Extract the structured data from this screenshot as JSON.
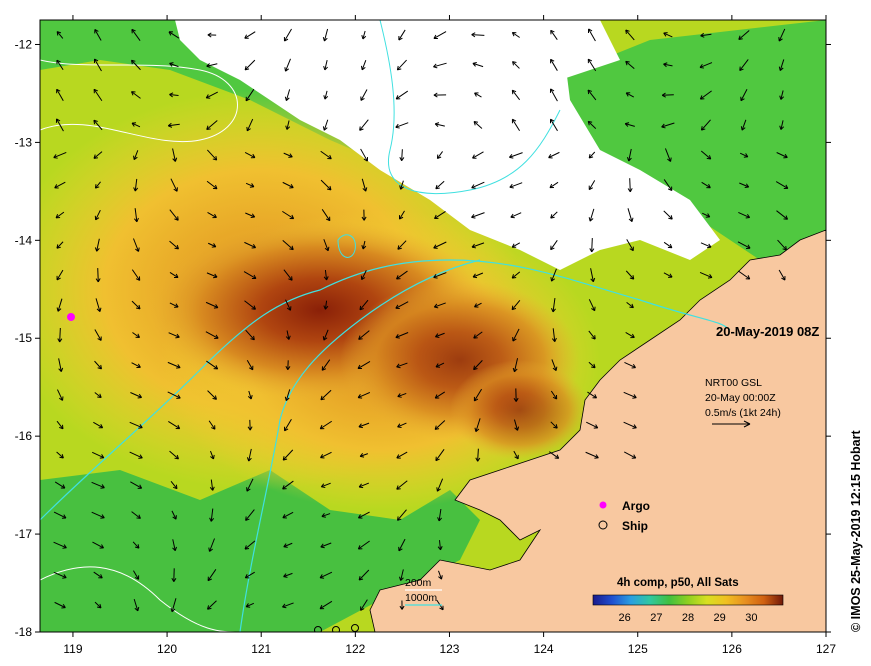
{
  "axes": {
    "x_ticks": [
      "119",
      "120",
      "121",
      "122",
      "123",
      "124",
      "125",
      "126",
      "127"
    ],
    "y_ticks": [
      "-12",
      "-13",
      "-14",
      "-15",
      "-16",
      "-17",
      "-18"
    ],
    "lon_range": [
      118.65,
      127.0
    ],
    "lat_range": [
      -11.75,
      -18.0
    ]
  },
  "timestamp": "20-May-2019 08Z",
  "current_legend": {
    "line1": "NRT00 GSL",
    "line2": "20-May 00:00Z",
    "line3": "0.5m/s (1kt 24h)"
  },
  "markers": {
    "argo_label": "Argo",
    "ship_label": "Ship",
    "argo_color": "#ff00ff"
  },
  "contours": {
    "label_200": "200m",
    "label_1000": "1000m",
    "color_200": "#ffffff",
    "color_1000": "#40e0e0"
  },
  "colorbar": {
    "title": "4h comp, p50, All Sats",
    "ticks": [
      "26",
      "27",
      "28",
      "29",
      "30"
    ],
    "colors": [
      "#1a1a8c",
      "#1f4fd0",
      "#2a9fe0",
      "#30c8a0",
      "#40c040",
      "#8fd020",
      "#d8e020",
      "#f0c020",
      "#e89020",
      "#d06010",
      "#a83010",
      "#701808"
    ]
  },
  "credit": "© IMOS 25-May-2019 12:15 Hobart",
  "land_color": "#f8c8a0"
}
